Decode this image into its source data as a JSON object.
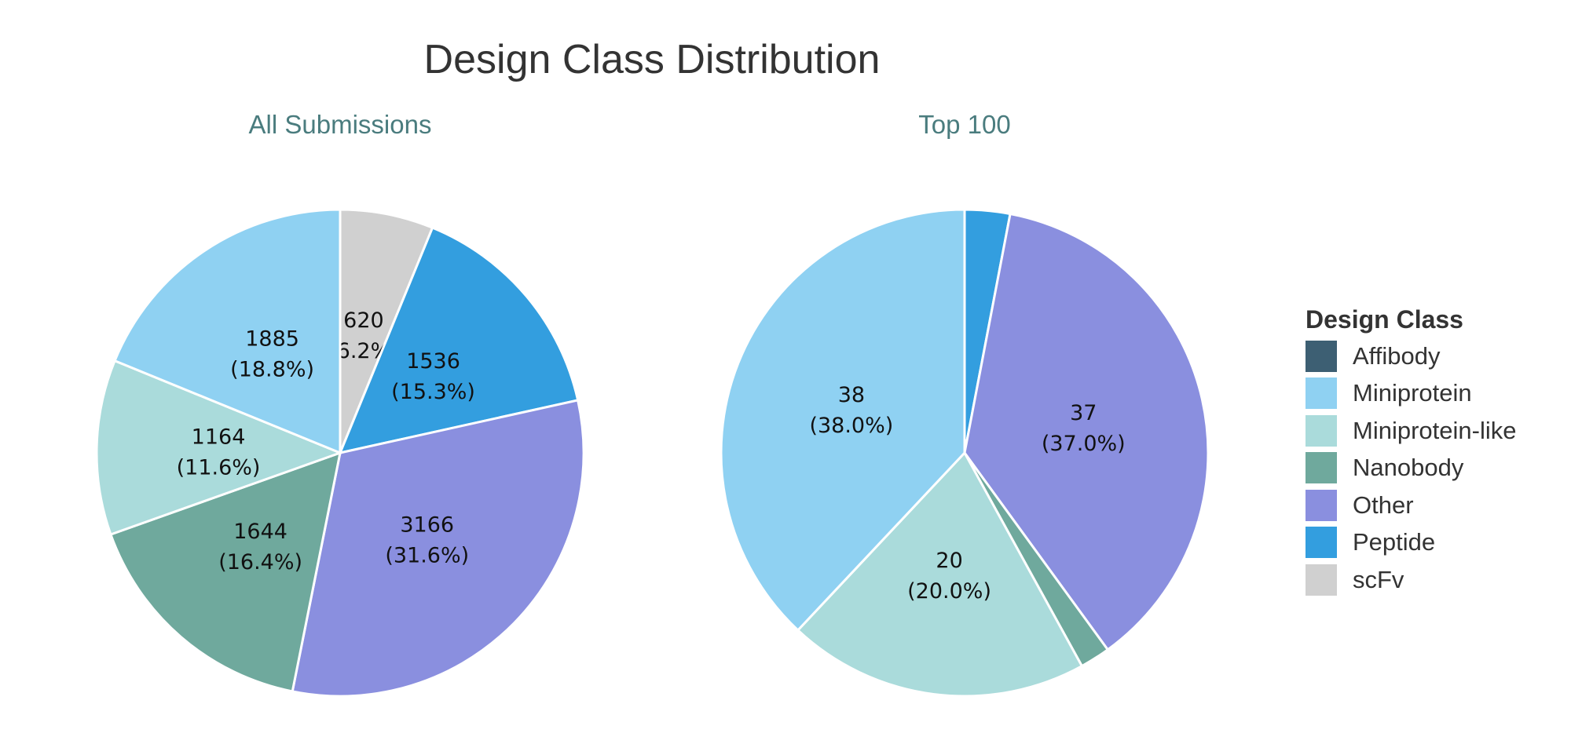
{
  "chart_data": {
    "type": "pie",
    "title": "Design Class Distribution",
    "legend": {
      "title": "Design Class",
      "placement": "right",
      "entries": [
        {
          "name": "Affibody",
          "color": "#3d5f73"
        },
        {
          "name": "Miniprotein",
          "color": "#8fd1f2"
        },
        {
          "name": "Miniprotein-like",
          "color": "#aadbdb"
        },
        {
          "name": "Nanobody",
          "color": "#6fa99d"
        },
        {
          "name": "Other",
          "color": "#8a8fdf"
        },
        {
          "name": "Peptide",
          "color": "#339edf"
        },
        {
          "name": "scFv",
          "color": "#d0d0d0"
        }
      ]
    },
    "panels": [
      {
        "title": "All Submissions",
        "slices": [
          {
            "category": "scFv",
            "value": 620,
            "label_line1": "620",
            "label_line2": "(6.2%)"
          },
          {
            "category": "Peptide",
            "value": 1536,
            "label_line1": "1536",
            "label_line2": "(15.3%)"
          },
          {
            "category": "Other",
            "value": 3166,
            "label_line1": "3166",
            "label_line2": "(31.6%)"
          },
          {
            "category": "Nanobody",
            "value": 1644,
            "label_line1": "1644",
            "label_line2": "(16.4%)"
          },
          {
            "category": "Miniprotein-like",
            "value": 1164,
            "label_line1": "1164",
            "label_line2": "(11.6%)"
          },
          {
            "category": "Miniprotein",
            "value": 1885,
            "label_line1": "1885",
            "label_line2": "(18.8%)"
          }
        ]
      },
      {
        "title": "Top 100",
        "slices": [
          {
            "category": "Peptide",
            "value": 3,
            "label_line1": "",
            "label_line2": ""
          },
          {
            "category": "Other",
            "value": 37,
            "label_line1": "37",
            "label_line2": "(37.0%)"
          },
          {
            "category": "Nanobody",
            "value": 2,
            "label_line1": "",
            "label_line2": ""
          },
          {
            "category": "Miniprotein-like",
            "value": 20,
            "label_line1": "20",
            "label_line2": "(20.0%)"
          },
          {
            "category": "Miniprotein",
            "value": 38,
            "label_line1": "38",
            "label_line2": "(38.0%)"
          }
        ]
      }
    ]
  }
}
